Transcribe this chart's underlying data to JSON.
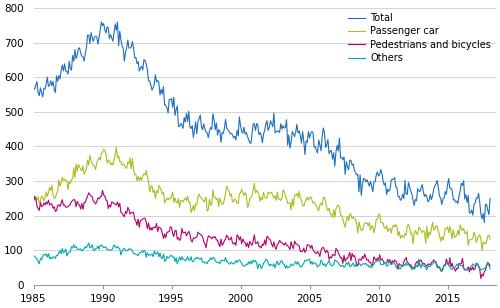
{
  "ylim": [
    0,
    800
  ],
  "yticks": [
    0,
    100,
    200,
    300,
    400,
    500,
    600,
    700,
    800
  ],
  "xticks": [
    1985,
    1990,
    1995,
    2000,
    2005,
    2010,
    2015
  ],
  "xlim_start_year": 1985,
  "xlim_end_year": 2018.5,
  "colors": {
    "Total": "#1F6FBF",
    "Passenger car": "#AABC1E",
    "Pedestrians and bicycles": "#B5006E",
    "Others": "#00AAAA"
  },
  "grid_color": "#CCCCCC",
  "background_color": "#FFFFFF",
  "linewidth": 0.8,
  "total_trend_x": [
    1985,
    1986,
    1987,
    1988,
    1989,
    1990,
    1991,
    1992,
    1993,
    1994,
    1995,
    1996,
    1997,
    1998,
    1999,
    2000,
    2001,
    2002,
    2003,
    2004,
    2005,
    2006,
    2007,
    2008,
    2009,
    2010,
    2011,
    2012,
    2013,
    2014,
    2015,
    2016,
    2017,
    2018.1
  ],
  "total_trend_y": [
    545,
    580,
    610,
    660,
    700,
    740,
    720,
    680,
    630,
    570,
    510,
    470,
    460,
    450,
    440,
    435,
    445,
    450,
    445,
    435,
    420,
    405,
    390,
    340,
    285,
    310,
    275,
    260,
    265,
    270,
    265,
    255,
    230,
    210
  ],
  "passengercar_x": [
    1985,
    1986,
    1987,
    1988,
    1989,
    1990,
    1991,
    1992,
    1993,
    1994,
    1995,
    1996,
    1997,
    1998,
    1999,
    2000,
    2001,
    2002,
    2003,
    2004,
    2005,
    2006,
    2007,
    2008,
    2009,
    2010,
    2011,
    2012,
    2013,
    2014,
    2015,
    2016,
    2017,
    2018.1
  ],
  "passengercar_y": [
    238,
    260,
    285,
    318,
    348,
    372,
    365,
    340,
    308,
    275,
    248,
    238,
    238,
    242,
    248,
    252,
    262,
    258,
    252,
    248,
    238,
    232,
    212,
    188,
    170,
    182,
    162,
    148,
    152,
    152,
    152,
    152,
    138,
    128
  ],
  "pedestrians_x": [
    1985,
    1986,
    1987,
    1988,
    1989,
    1990,
    1991,
    1992,
    1993,
    1994,
    1995,
    1996,
    1997,
    1998,
    1999,
    2000,
    2001,
    2002,
    2003,
    2004,
    2005,
    2006,
    2007,
    2008,
    2009,
    2010,
    2011,
    2012,
    2013,
    2014,
    2015,
    2016,
    2017,
    2018.1
  ],
  "pedestrians_y": [
    238,
    232,
    228,
    238,
    242,
    252,
    228,
    208,
    178,
    162,
    148,
    142,
    138,
    132,
    128,
    125,
    122,
    122,
    118,
    112,
    102,
    98,
    88,
    78,
    72,
    68,
    64,
    61,
    58,
    56,
    54,
    52,
    47,
    43
  ],
  "others_x": [
    1985,
    1986,
    1987,
    1988,
    1989,
    1990,
    1991,
    1992,
    1993,
    1994,
    1995,
    1996,
    1997,
    1998,
    1999,
    2000,
    2001,
    2002,
    2003,
    2004,
    2005,
    2006,
    2007,
    2008,
    2009,
    2010,
    2011,
    2012,
    2013,
    2014,
    2015,
    2016,
    2017,
    2018.1
  ],
  "others_y": [
    78,
    82,
    92,
    105,
    110,
    108,
    102,
    98,
    92,
    86,
    78,
    73,
    71,
    68,
    66,
    63,
    61,
    60,
    58,
    56,
    63,
    60,
    63,
    58,
    53,
    63,
    58,
    55,
    55,
    56,
    55,
    54,
    52,
    50
  ],
  "noise_seeds": {
    "total": 42,
    "passengercar": 43,
    "pedestrians": 44,
    "others": 45
  },
  "noise_levels": {
    "total": 15,
    "passengercar": 10,
    "pedestrians": 7,
    "others": 5
  },
  "seasonal_amplitudes": {
    "total": 20,
    "passengercar": 14,
    "pedestrians": 10,
    "others": 6
  }
}
